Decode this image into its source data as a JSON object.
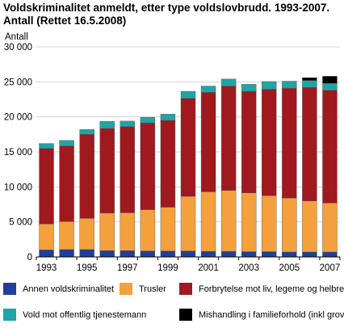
{
  "title_line1": "Voldskriminalitet anmeldt, etter type voldslovbrudd. 1993-2007.",
  "title_line2": "Antall (Rettet 16.5.2008)",
  "chart_data": {
    "type": "bar",
    "stacked": true,
    "title": "Voldskriminalitet anmeldt, etter type voldslovbrudd. 1993-2007. Antall (Rettet 16.5.2008)",
    "ylabel": "Antall",
    "xlabel": "",
    "ylim": [
      0,
      30000
    ],
    "yticks": [
      0,
      5000,
      10000,
      15000,
      20000,
      25000,
      30000
    ],
    "ytick_labels": [
      "0",
      "5 000",
      "10 000",
      "15 000",
      "20 000",
      "25 000",
      "30 000"
    ],
    "categories": [
      "1993",
      "1994",
      "1995",
      "1996",
      "1997",
      "1998",
      "1999",
      "2000",
      "2001",
      "2002",
      "2003",
      "2004",
      "2005",
      "2006",
      "2007"
    ],
    "xtick_labels": [
      "1993",
      "",
      "1995",
      "",
      "1997",
      "",
      "1999",
      "",
      "2001",
      "",
      "2003",
      "",
      "2005",
      "",
      "2007"
    ],
    "grid": true,
    "legend_position": "bottom",
    "series": [
      {
        "name": "Annen voldskriminalitet",
        "color": "#1f3f9a",
        "values": [
          1000,
          1050,
          1050,
          900,
          900,
          850,
          850,
          850,
          800,
          800,
          750,
          750,
          700,
          700,
          700
        ]
      },
      {
        "name": "Trusler",
        "color": "#f4a03c",
        "values": [
          3700,
          4000,
          4450,
          5350,
          5400,
          5900,
          6250,
          7800,
          8500,
          8700,
          8400,
          8000,
          7700,
          7300,
          7000
        ]
      },
      {
        "name": "Forbrytelse mot liv, legeme og helbred",
        "color": "#a0191e",
        "values": [
          10800,
          10800,
          12000,
          12100,
          12300,
          12400,
          12400,
          14000,
          14200,
          14900,
          14500,
          15200,
          15700,
          16200,
          16100
        ]
      },
      {
        "name": "Vold mot offentlig tjenestemann",
        "color": "#1fa5a6",
        "values": [
          700,
          800,
          700,
          1000,
          800,
          800,
          900,
          1000,
          900,
          1000,
          1000,
          1100,
          1000,
          1000,
          1000
        ]
      },
      {
        "name": "Mishandling i familieforhold (inkl grov)",
        "color": "#000000",
        "values": [
          0,
          0,
          0,
          0,
          0,
          0,
          0,
          0,
          0,
          0,
          0,
          0,
          0,
          400,
          1000
        ]
      }
    ]
  }
}
